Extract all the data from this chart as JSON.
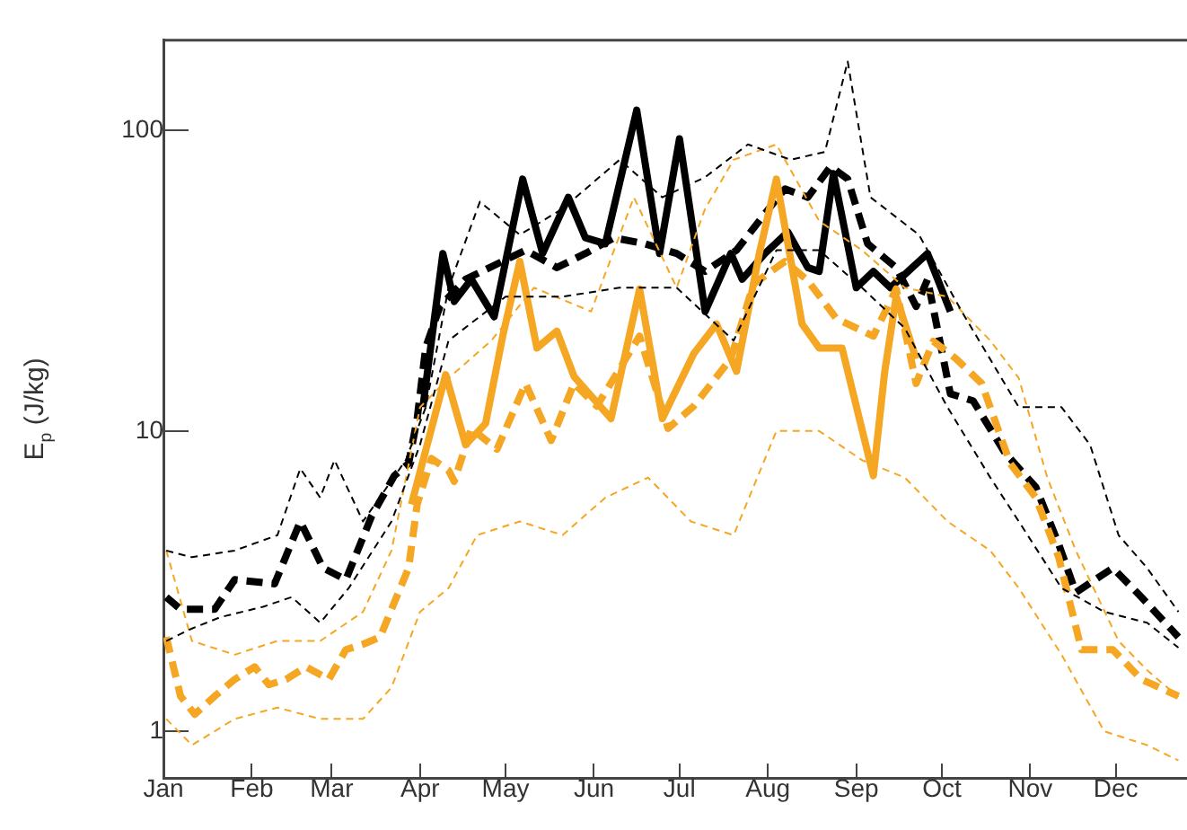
{
  "chart_data": {
    "type": "line",
    "ylabel": "E$_{p}$ (J/kg)",
    "log": true,
    "grid": false,
    "legend": false,
    "marker": "none",
    "xlim": [
      "--01-01",
      "--12-26"
    ],
    "ylim": [
      0.7,
      200
    ],
    "yticks": [
      1,
      10,
      100
    ],
    "xticks": [
      {
        "value": "--01-01",
        "label": "Jan"
      },
      {
        "value": "--02-01",
        "label": "Feb"
      },
      {
        "value": "--03-01",
        "label": "Mar"
      },
      {
        "value": "--04-01",
        "label": "Apr"
      },
      {
        "value": "--05-01",
        "label": "May"
      },
      {
        "value": "--06-01",
        "label": "Jun"
      },
      {
        "value": "--07-01",
        "label": "Jul"
      },
      {
        "value": "--08-01",
        "label": "Aug"
      },
      {
        "value": "--09-01",
        "label": "Sep"
      },
      {
        "value": "--10-01",
        "label": "Oct"
      },
      {
        "value": "--11-01",
        "label": "Nov"
      },
      {
        "value": "--12-01",
        "label": "Dec"
      }
    ],
    "series": [
      {
        "color": "#000000",
        "line_style": "dashed",
        "x": [
          "--01-02",
          "--01-11",
          "--01-26",
          "--02-10",
          "--02-18",
          "--02-25",
          "--03-02",
          "--03-12",
          "--03-27",
          "--04-03",
          "--04-11",
          "--04-22",
          "--05-06",
          "--05-21",
          "--06-10",
          "--06-25",
          "--07-10",
          "--07-25",
          "--08-09",
          "--08-21",
          "--08-29",
          "--09-06",
          "--09-23",
          "--10-08",
          "--10-28",
          "--11-12",
          "--11-22",
          "--12-02",
          "--12-12",
          "--12-23"
        ],
        "values": [
          4,
          3.8,
          4,
          4.5,
          7.5,
          6,
          8,
          5,
          8,
          12,
          30,
          58,
          45,
          55,
          80,
          60,
          70,
          90,
          80,
          85,
          170,
          60,
          45,
          25,
          12,
          12,
          9,
          4.5,
          3.5,
          2.5
        ]
      },
      {
        "color": "#000000",
        "line_style": "dashed",
        "x": [
          "--01-02",
          "--01-11",
          "--01-21",
          "--02-05",
          "--02-15",
          "--02-25",
          "--03-07",
          "--03-22",
          "--04-01",
          "--04-11",
          "--05-01",
          "--05-21",
          "--06-10",
          "--06-30",
          "--07-20",
          "--08-04",
          "--08-19",
          "--09-03",
          "--09-18",
          "--10-03",
          "--10-18",
          "--10-28",
          "--11-12",
          "--11-27",
          "--12-12",
          "--12-23"
        ],
        "values": [
          2,
          2.2,
          2.4,
          2.6,
          2.8,
          2.3,
          3,
          5,
          9,
          20,
          28,
          28,
          30,
          30,
          20,
          40,
          40,
          30,
          22,
          12,
          7,
          5,
          3,
          2.5,
          2.3,
          1.9
        ]
      },
      {
        "color": "#f5a623",
        "line_style": "dashed",
        "x": [
          "--01-02",
          "--01-11",
          "--01-26",
          "--02-10",
          "--02-25",
          "--03-12",
          "--03-22",
          "--04-01",
          "--04-11",
          "--04-26",
          "--05-11",
          "--05-31",
          "--06-15",
          "--06-30",
          "--07-10",
          "--07-20",
          "--08-04",
          "--08-19",
          "--09-03",
          "--09-18",
          "--10-03",
          "--10-18",
          "--10-28",
          "--11-07",
          "--11-17",
          "--12-02",
          "--12-12",
          "--12-23"
        ],
        "values": [
          4,
          2,
          1.8,
          2,
          2,
          2.5,
          4,
          12,
          15,
          20,
          30,
          25,
          60,
          30,
          55,
          80,
          90,
          50,
          40,
          30,
          28,
          20,
          15,
          7,
          4,
          2,
          1.6,
          1.3
        ]
      },
      {
        "color": "#f5a623",
        "line_style": "dashed",
        "x": [
          "--01-02",
          "--01-11",
          "--01-26",
          "--02-10",
          "--02-25",
          "--03-12",
          "--03-22",
          "--04-01",
          "--04-11",
          "--04-21",
          "--05-06",
          "--05-21",
          "--06-05",
          "--06-20",
          "--07-05",
          "--07-20",
          "--08-04",
          "--08-19",
          "--09-03",
          "--09-18",
          "--10-03",
          "--10-18",
          "--10-28",
          "--11-12",
          "--11-27",
          "--12-12",
          "--12-23"
        ],
        "values": [
          1.1,
          0.9,
          1.1,
          1.2,
          1.1,
          1.1,
          1.4,
          2.5,
          3,
          4.5,
          5,
          4.5,
          6,
          7,
          5,
          4.5,
          10,
          10,
          8,
          7,
          5,
          4,
          3,
          1.8,
          1,
          0.9,
          0.8
        ]
      },
      {
        "color": "#f5a623",
        "line_style": "dashed",
        "x": [
          "--01-02",
          "--01-07",
          "--01-12",
          "--01-19",
          "--01-26",
          "--02-02",
          "--02-07",
          "--02-13",
          "--02-20",
          "--02-28",
          "--03-06",
          "--03-12",
          "--03-18",
          "--03-23",
          "--03-28",
          "--03-31",
          "--04-05",
          "--04-11",
          "--04-13",
          "--04-19",
          "--04-28",
          "--05-08",
          "--05-17",
          "--05-25",
          "--06-02",
          "--06-17",
          "--06-27",
          "--07-06",
          "--07-19",
          "--07-27",
          "--08-07",
          "--08-15",
          "--08-25",
          "--09-07",
          "--09-15",
          "--09-22",
          "--09-28",
          "--10-06",
          "--10-15",
          "--10-25",
          "--11-03",
          "--11-11",
          "--11-19",
          "--11-30",
          "--12-10",
          "--12-23"
        ],
        "values": [
          2.06,
          1.31,
          1.14,
          1.31,
          1.49,
          1.64,
          1.43,
          1.49,
          1.64,
          1.49,
          1.87,
          1.95,
          2.06,
          2.69,
          3.5,
          5.7,
          8.1,
          7.4,
          6.8,
          10.2,
          8.7,
          14.4,
          9.3,
          14.4,
          12.1,
          20.7,
          10.2,
          12.1,
          17.4,
          30.9,
          36.7,
          31.7,
          23.7,
          20.7,
          29.7,
          14.4,
          19.9,
          17.4,
          14.4,
          7.8,
          6,
          3.8,
          1.87,
          1.87,
          1.49,
          1.31
        ]
      },
      {
        "color": "#f5a623",
        "line_style": "solid",
        "x": [
          "--03-29",
          "--04-10",
          "--04-17",
          "--04-24",
          "--04-30",
          "--05-06",
          "--05-12",
          "--05-19",
          "--05-25",
          "--06-07",
          "--06-17",
          "--06-25",
          "--07-06",
          "--07-14",
          "--07-21",
          "--07-29",
          "--08-04",
          "--08-13",
          "--08-19",
          "--08-27",
          "--09-07",
          "--09-11",
          "--09-15",
          "--09-22"
        ],
        "values": [
          5.7,
          15.4,
          9,
          10.6,
          20.7,
          36.7,
          18.9,
          21.5,
          15.2,
          11,
          29.7,
          11,
          18.1,
          22.7,
          15.8,
          39,
          69,
          22.7,
          18.9,
          18.9,
          7.1,
          15.8,
          28,
          17.4
        ]
      },
      {
        "color": "#000000",
        "line_style": "dashed",
        "x": [
          "--01-02",
          "--01-07",
          "--01-19",
          "--01-26",
          "--02-09",
          "--02-18",
          "--02-26",
          "--03-06",
          "--03-15",
          "--03-23",
          "--03-28",
          "--03-31",
          "--04-03",
          "--04-08",
          "--04-17",
          "--05-08",
          "--05-19",
          "--05-29",
          "--06-08",
          "--06-19",
          "--06-30",
          "--07-10",
          "--07-21",
          "--07-31",
          "--08-07",
          "--08-15",
          "--08-23",
          "--08-29",
          "--09-05",
          "--09-15",
          "--09-22",
          "--09-26",
          "--10-04",
          "--10-12",
          "--10-23",
          "--11-03",
          "--11-11",
          "--11-17",
          "--11-30",
          "--12-10",
          "--12-23"
        ],
        "values": [
          2.8,
          2.55,
          2.55,
          3.2,
          3.1,
          5,
          3.5,
          3.2,
          5.2,
          7.1,
          7.8,
          11,
          19,
          26,
          32,
          40,
          35,
          39,
          44,
          42,
          39,
          34,
          40,
          53,
          64,
          60,
          76,
          69,
          42,
          35,
          26,
          32,
          13.3,
          12.6,
          8.5,
          6.5,
          4.2,
          2.9,
          3.5,
          2.8,
          2.06
        ]
      },
      {
        "color": "#000000",
        "line_style": "solid",
        "x": [
          "--04-02",
          "--04-09",
          "--04-13",
          "--04-19",
          "--04-27",
          "--05-07",
          "--05-14",
          "--05-23",
          "--05-29",
          "--06-05",
          "--06-16",
          "--06-24",
          "--07-01",
          "--07-10",
          "--07-19",
          "--07-23",
          "--07-31",
          "--08-08",
          "--08-15",
          "--08-19",
          "--08-24",
          "--09-01",
          "--09-07",
          "--09-13",
          "--09-26",
          "--10-04"
        ],
        "values": [
          12,
          39,
          27,
          32,
          24,
          69,
          39,
          60,
          44,
          42,
          117,
          39,
          94,
          25,
          39,
          32,
          39,
          46,
          35,
          34,
          72,
          30,
          34,
          30,
          39,
          25
        ]
      }
    ]
  }
}
